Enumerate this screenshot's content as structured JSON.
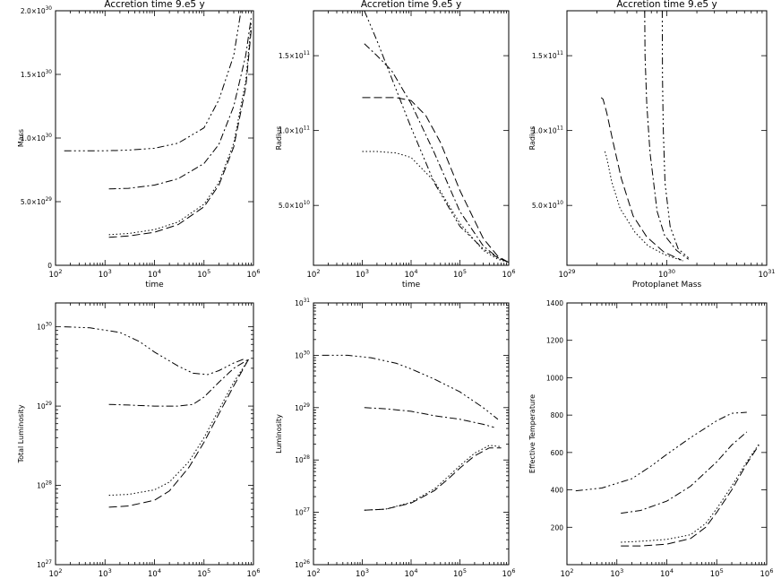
{
  "figure_title": "Accretion time 9.e5 y",
  "chart_data": [
    {
      "type": "line",
      "title": "Accretion time 9.e5 y",
      "xlabel": "time",
      "ylabel": "Mass",
      "xscale": "log",
      "yscale": "linear",
      "xlim": [
        100,
        1000000
      ],
      "ylim": [
        0,
        2e+30
      ],
      "xticks": [
        {
          "v": 100,
          "m": "10",
          "e": "2"
        },
        {
          "v": 1000,
          "m": "10",
          "e": "3"
        },
        {
          "v": 10000,
          "m": "10",
          "e": "4"
        },
        {
          "v": 100000,
          "m": "10",
          "e": "5"
        },
        {
          "v": 1000000,
          "m": "10",
          "e": "6"
        }
      ],
      "yticks": [
        {
          "v": 0,
          "m": "0",
          "e": ""
        },
        {
          "v": 5e+29,
          "m": "5.0×10",
          "e": "29"
        },
        {
          "v": 1e+30,
          "m": "1.0×10",
          "e": "30"
        },
        {
          "v": 1.5e+30,
          "m": "1.5×10",
          "e": "30"
        },
        {
          "v": 2e+30,
          "m": "2.0×10",
          "e": "30"
        }
      ],
      "series": [
        {
          "dash": "8 3 2 3 2 3 2 3",
          "x": [
            150,
            1000,
            3000,
            10000,
            30000,
            100000,
            200000,
            400000,
            560000
          ],
          "y": [
            9e+29,
            9e+29,
            9.05e+29,
            9.2e+29,
            9.6e+29,
            1.08e+30,
            1.3e+30,
            1.65e+30,
            2e+30
          ]
        },
        {
          "dash": "8 3 2 3",
          "x": [
            1200,
            3000,
            10000,
            30000,
            100000,
            200000,
            400000,
            700000,
            900000
          ],
          "y": [
            6e+29,
            6.05e+29,
            6.3e+29,
            6.8e+29,
            8e+29,
            9.5e+29,
            1.25e+30,
            1.65e+30,
            1.95e+30
          ]
        },
        {
          "dash": "9 4",
          "x": [
            1200,
            3000,
            10000,
            30000,
            100000,
            200000,
            400000,
            700000,
            900000
          ],
          "y": [
            2.2e+29,
            2.3e+29,
            2.6e+29,
            3.2e+29,
            4.6e+29,
            6.3e+29,
            9.3e+29,
            1.4e+30,
            1.85e+30
          ]
        },
        {
          "dash": "1.5 2.5",
          "x": [
            1200,
            3000,
            10000,
            30000,
            100000,
            200000,
            400000,
            700000,
            900000
          ],
          "y": [
            2.4e+29,
            2.5e+29,
            2.8e+29,
            3.4e+29,
            4.8e+29,
            6.5e+29,
            9.6e+29,
            1.45e+30,
            1.9e+30
          ]
        }
      ]
    },
    {
      "type": "line",
      "title": "Accretion time 9.e5 y",
      "xlabel": "time",
      "ylabel": "Radius",
      "xscale": "log",
      "yscale": "linear",
      "xlim": [
        100,
        1000000
      ],
      "ylim": [
        10000000000.0,
        180000000000.0
      ],
      "xticks": [
        {
          "v": 100,
          "m": "10",
          "e": "2"
        },
        {
          "v": 1000,
          "m": "10",
          "e": "3"
        },
        {
          "v": 10000,
          "m": "10",
          "e": "4"
        },
        {
          "v": 100000,
          "m": "10",
          "e": "5"
        },
        {
          "v": 1000000,
          "m": "10",
          "e": "6"
        }
      ],
      "yticks": [
        {
          "v": 50000000000.0,
          "m": "5.0×10",
          "e": "10"
        },
        {
          "v": 100000000000.0,
          "m": "1.0×10",
          "e": "11"
        },
        {
          "v": 150000000000.0,
          "m": "1.5×10",
          "e": "11"
        }
      ],
      "series": [
        {
          "dash": "8 3 2 3 2 3 2 3",
          "x": [
            1100,
            2000,
            4000,
            10000,
            30000,
            100000,
            300000,
            600000,
            1000000
          ],
          "y": [
            180000000000.0,
            160000000000.0,
            135000000000.0,
            102000000000.0,
            65000000000.0,
            36000000000.0,
            21000000000.0,
            15000000000.0,
            12000000000.0
          ]
        },
        {
          "dash": "8 3 2 3",
          "x": [
            1100,
            2000,
            4000,
            10000,
            30000,
            100000,
            300000,
            600000,
            1000000
          ],
          "y": [
            158000000000.0,
            150000000000.0,
            140000000000.0,
            118000000000.0,
            85000000000.0,
            46000000000.0,
            23000000000.0,
            15000000000.0,
            12000000000.0
          ]
        },
        {
          "dash": "9 4",
          "x": [
            1000,
            2000,
            5000,
            10000,
            20000,
            40000,
            100000,
            300000,
            600000,
            1000000
          ],
          "y": [
            122000000000.0,
            122000000000.0,
            122000000000.0,
            120000000000.0,
            110000000000.0,
            92000000000.0,
            60000000000.0,
            28000000000.0,
            16000000000.0,
            12000000000.0
          ]
        },
        {
          "dash": "1.5 2.5",
          "x": [
            1000,
            2000,
            5000,
            10000,
            30000,
            100000,
            300000,
            600000,
            1000000
          ],
          "y": [
            86000000000.0,
            86000000000.0,
            85000000000.0,
            82000000000.0,
            66000000000.0,
            38000000000.0,
            20000000000.0,
            14000000000.0,
            12000000000.0
          ]
        }
      ]
    },
    {
      "type": "line",
      "title": "Accretion time 9.e5 y",
      "xlabel": "Protoplanet Mass",
      "ylabel": "Radius",
      "xscale": "log",
      "yscale": "linear",
      "xlim": [
        1e+29,
        1e+31
      ],
      "ylim": [
        10000000000.0,
        180000000000.0
      ],
      "xticks": [
        {
          "v": 1e+29,
          "m": "10",
          "e": "29"
        },
        {
          "v": 1e+30,
          "m": "10",
          "e": "30"
        },
        {
          "v": 1e+31,
          "m": "10",
          "e": "31"
        }
      ],
      "yticks": [
        {
          "v": 50000000000.0,
          "m": "5.0×10",
          "e": "10"
        },
        {
          "v": 100000000000.0,
          "m": "1.0×10",
          "e": "11"
        },
        {
          "v": 150000000000.0,
          "m": "1.5×10",
          "e": "11"
        }
      ],
      "series": [
        {
          "dash": "8 3 2 3 2 3 2 3",
          "x": [
            9e+29,
            9.05e+29,
            9.2e+29,
            9.6e+29,
            1.08e+30,
            1.3e+30,
            1.65e+30
          ],
          "y": [
            180000000000.0,
            135000000000.0,
            102000000000.0,
            65000000000.0,
            36000000000.0,
            21000000000.0,
            15000000000.0
          ]
        },
        {
          "dash": "8 3 2 3",
          "x": [
            6e+29,
            6.05e+29,
            6.3e+29,
            6.8e+29,
            8e+29,
            9.5e+29,
            1.25e+30,
            1.65e+30
          ],
          "y": [
            180000000000.0,
            150000000000.0,
            118000000000.0,
            85000000000.0,
            46000000000.0,
            30000000000.0,
            20000000000.0,
            14000000000.0
          ]
        },
        {
          "dash": "9 4",
          "x": [
            2.2e+29,
            2.3e+29,
            2.5e+29,
            2.9e+29,
            3.5e+29,
            4.6e+29,
            6.3e+29,
            9.3e+29,
            1.4e+30
          ],
          "y": [
            122000000000.0,
            121000000000.0,
            112000000000.0,
            92000000000.0,
            68000000000.0,
            43000000000.0,
            29000000000.0,
            19000000000.0,
            13500000000.0
          ]
        },
        {
          "dash": "1.5 2.5",
          "x": [
            2.4e+29,
            2.5e+29,
            2.8e+29,
            3.4e+29,
            4.8e+29,
            6.5e+29,
            9.6e+29,
            1.45e+30
          ],
          "y": [
            86000000000.0,
            82000000000.0,
            66000000000.0,
            48000000000.0,
            32000000000.0,
            23000000000.0,
            17000000000.0,
            13000000000.0
          ]
        }
      ]
    },
    {
      "type": "line",
      "title": "",
      "xlabel": "time",
      "ylabel": "Total Luminosity",
      "xscale": "log",
      "yscale": "log",
      "xlim": [
        100,
        1000000
      ],
      "ylim": [
        1e+27,
        2e+30
      ],
      "xticks": [
        {
          "v": 100,
          "m": "10",
          "e": "2"
        },
        {
          "v": 1000,
          "m": "10",
          "e": "3"
        },
        {
          "v": 10000,
          "m": "10",
          "e": "4"
        },
        {
          "v": 100000,
          "m": "10",
          "e": "5"
        },
        {
          "v": 1000000,
          "m": "10",
          "e": "6"
        }
      ],
      "yticks": [
        {
          "v": 1e+27,
          "m": "10",
          "e": "27"
        },
        {
          "v": 1e+28,
          "m": "10",
          "e": "28"
        },
        {
          "v": 1e+29,
          "m": "10",
          "e": "29"
        },
        {
          "v": 1e+30,
          "m": "10",
          "e": "30"
        }
      ],
      "series": [
        {
          "dash": "8 3 2 3 2 3 2 3",
          "x": [
            150,
            500,
            2000,
            5000,
            10000,
            30000,
            60000,
            120000,
            200000,
            400000,
            700000
          ],
          "y": [
            1e+30,
            9.7e+29,
            8.5e+29,
            6.5e+29,
            4.8e+29,
            3.2e+29,
            2.6e+29,
            2.5e+29,
            2.8e+29,
            3.5e+29,
            4e+29
          ]
        },
        {
          "dash": "8 3 2 3",
          "x": [
            1200,
            3000,
            10000,
            30000,
            60000,
            100000,
            200000,
            400000,
            800000
          ],
          "y": [
            1.05e+29,
            1.03e+29,
            1e+29,
            1e+29,
            1.05e+29,
            1.3e+29,
            2e+29,
            3e+29,
            3.9e+29
          ]
        },
        {
          "dash": "9 4",
          "x": [
            1200,
            3000,
            10000,
            20000,
            50000,
            100000,
            200000,
            400000,
            800000
          ],
          "y": [
            5.3e+27,
            5.5e+27,
            6.5e+27,
            8.5e+27,
            1.7e+28,
            3.5e+28,
            8e+28,
            1.8e+29,
            3.9e+29
          ]
        },
        {
          "dash": "1.5 2.5",
          "x": [
            1200,
            3000,
            10000,
            20000,
            50000,
            100000,
            200000,
            400000,
            800000
          ],
          "y": [
            7.5e+27,
            7.7e+27,
            8.8e+27,
            1.1e+28,
            2e+28,
            4e+28,
            9e+28,
            2e+29,
            3.9e+29
          ]
        }
      ]
    },
    {
      "type": "line",
      "title": "",
      "xlabel": "time",
      "ylabel": "Luminosity",
      "xscale": "log",
      "yscale": "log",
      "xlim": [
        100,
        1000000
      ],
      "ylim": [
        1e+26,
        1e+31
      ],
      "xticks": [
        {
          "v": 100,
          "m": "10",
          "e": "2"
        },
        {
          "v": 1000,
          "m": "10",
          "e": "3"
        },
        {
          "v": 10000,
          "m": "10",
          "e": "4"
        },
        {
          "v": 100000,
          "m": "10",
          "e": "5"
        },
        {
          "v": 1000000,
          "m": "10",
          "e": "6"
        }
      ],
      "yticks": [
        {
          "v": 1e+26,
          "m": "10",
          "e": "26"
        },
        {
          "v": 1e+27,
          "m": "10",
          "e": "27"
        },
        {
          "v": 1e+28,
          "m": "10",
          "e": "28"
        },
        {
          "v": 1e+29,
          "m": "10",
          "e": "29"
        },
        {
          "v": 1e+30,
          "m": "10",
          "e": "30"
        },
        {
          "v": 1e+31,
          "m": "10",
          "e": "31"
        }
      ],
      "series": [
        {
          "dash": "8 3 2 3 2 3 2 3",
          "x": [
            150,
            500,
            1500,
            5000,
            10000,
            30000,
            100000,
            300000,
            600000
          ],
          "y": [
            1e+30,
            1e+30,
            9e+29,
            7e+29,
            5.5e+29,
            3.5e+29,
            2e+29,
            1e+29,
            6e+28
          ]
        },
        {
          "dash": "8 3 2 3",
          "x": [
            1100,
            3000,
            10000,
            30000,
            100000,
            300000,
            500000
          ],
          "y": [
            1e+29,
            9.5e+28,
            8.5e+28,
            7e+28,
            6e+28,
            4.8e+28,
            4.2e+28
          ]
        },
        {
          "dash": "9 4",
          "x": [
            1100,
            3000,
            10000,
            30000,
            60000,
            100000,
            200000,
            400000,
            700000
          ],
          "y": [
            1.1e+27,
            1.15e+27,
            1.5e+27,
            2.6e+27,
            4.5e+27,
            7e+27,
            1.2e+28,
            1.7e+28,
            1.7e+28
          ]
        },
        {
          "dash": "1.5 2.5",
          "x": [
            1100,
            3000,
            10000,
            30000,
            60000,
            100000,
            200000,
            400000,
            700000
          ],
          "y": [
            1.1e+27,
            1.15e+27,
            1.55e+27,
            2.8e+27,
            5e+27,
            7.8e+27,
            1.35e+28,
            1.9e+28,
            1.8e+28
          ]
        }
      ]
    },
    {
      "type": "line",
      "title": "",
      "xlabel": "time",
      "ylabel": "Effective Temperature",
      "xscale": "log",
      "yscale": "linear",
      "xlim": [
        100,
        1000000
      ],
      "ylim": [
        0,
        1400
      ],
      "xticks": [
        {
          "v": 100,
          "m": "10",
          "e": "2"
        },
        {
          "v": 1000,
          "m": "10",
          "e": "3"
        },
        {
          "v": 10000,
          "m": "10",
          "e": "4"
        },
        {
          "v": 100000,
          "m": "10",
          "e": "5"
        },
        {
          "v": 1000000,
          "m": "10",
          "e": "6"
        }
      ],
      "yticks": [
        {
          "v": 200,
          "m": "200",
          "e": ""
        },
        {
          "v": 400,
          "m": "400",
          "e": ""
        },
        {
          "v": 600,
          "m": "600",
          "e": ""
        },
        {
          "v": 800,
          "m": "800",
          "e": ""
        },
        {
          "v": 1000,
          "m": "1000",
          "e": ""
        },
        {
          "v": 1200,
          "m": "1200",
          "e": ""
        },
        {
          "v": 1400,
          "m": "1400",
          "e": ""
        }
      ],
      "series": [
        {
          "dash": "8 3 2 3 2 3 2 3",
          "x": [
            150,
            500,
            2000,
            5000,
            10000,
            30000,
            100000,
            200000,
            400000
          ],
          "y": [
            395,
            410,
            460,
            530,
            590,
            680,
            770,
            810,
            815
          ]
        },
        {
          "dash": "8 3 2 3",
          "x": [
            1200,
            3000,
            10000,
            30000,
            100000,
            200000,
            400000
          ],
          "y": [
            275,
            290,
            340,
            420,
            550,
            640,
            710
          ]
        },
        {
          "dash": "9 4",
          "x": [
            1200,
            3000,
            10000,
            30000,
            60000,
            100000,
            200000,
            400000,
            700000
          ],
          "y": [
            100,
            100,
            110,
            140,
            200,
            280,
            400,
            540,
            640
          ]
        },
        {
          "dash": "1.5 2.5",
          "x": [
            1200,
            3000,
            10000,
            30000,
            60000,
            100000,
            200000,
            400000,
            700000
          ],
          "y": [
            120,
            125,
            135,
            160,
            220,
            300,
            420,
            550,
            645
          ]
        }
      ]
    }
  ]
}
